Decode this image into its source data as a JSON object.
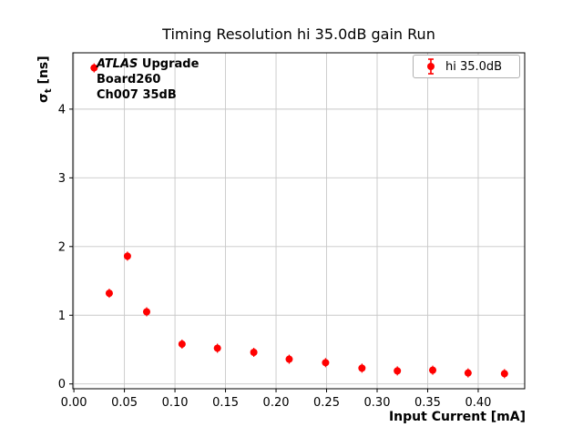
{
  "figure": {
    "title": "Timing Resolution hi 35.0dB gain Run",
    "xlabel": "Input Current [mA]",
    "ylabel": {
      "symbol": "σ",
      "subscript": "t",
      "unit": " [ns]"
    },
    "annotation": {
      "experiment": "ATLAS",
      "tag": " Upgrade",
      "line2": "Board260",
      "line3": "Ch007 35dB"
    },
    "legend": {
      "label": "hi 35.0dB"
    }
  },
  "chart_data": {
    "type": "scatter",
    "title": "Timing Resolution hi 35.0dB gain Run",
    "xlabel": "Input Current [mA]",
    "ylabel": "sigma_t [ns]",
    "grid": true,
    "legend_position": "upper right",
    "legend_entries": [
      "hi 35.0dB"
    ],
    "annotation_text": [
      "ATLAS Upgrade",
      "Board260",
      "Ch007 35dB"
    ],
    "xlim": [
      -0.001,
      0.446
    ],
    "ylim": [
      -0.07,
      4.82
    ],
    "xticks": [
      {
        "v": 0.0,
        "label": "0.00"
      },
      {
        "v": 0.05,
        "label": "0.05"
      },
      {
        "v": 0.1,
        "label": "0.10"
      },
      {
        "v": 0.15,
        "label": "0.15"
      },
      {
        "v": 0.2,
        "label": "0.20"
      },
      {
        "v": 0.25,
        "label": "0.25"
      },
      {
        "v": 0.3,
        "label": "0.30"
      },
      {
        "v": 0.35,
        "label": "0.35"
      },
      {
        "v": 0.4,
        "label": "0.40"
      }
    ],
    "yticks": [
      {
        "v": 0,
        "label": "0"
      },
      {
        "v": 1,
        "label": "1"
      },
      {
        "v": 2,
        "label": "2"
      },
      {
        "v": 3,
        "label": "3"
      },
      {
        "v": 4,
        "label": "4"
      }
    ],
    "series": [
      {
        "name": "hi 35.0dB",
        "color": "#ff0000",
        "marker": "circle-errorbar",
        "points": [
          [
            0.02,
            4.6
          ],
          [
            0.035,
            1.32
          ],
          [
            0.053,
            1.86
          ],
          [
            0.072,
            1.05
          ],
          [
            0.107,
            0.58
          ],
          [
            0.142,
            0.52
          ],
          [
            0.178,
            0.46
          ],
          [
            0.213,
            0.36
          ],
          [
            0.249,
            0.31
          ],
          [
            0.285,
            0.23
          ],
          [
            0.32,
            0.19
          ],
          [
            0.355,
            0.2
          ],
          [
            0.39,
            0.16
          ],
          [
            0.426,
            0.15
          ]
        ]
      }
    ],
    "colors": {
      "point": "#ff0000",
      "grid": "#c8c8c8",
      "axes": "#000000"
    }
  }
}
